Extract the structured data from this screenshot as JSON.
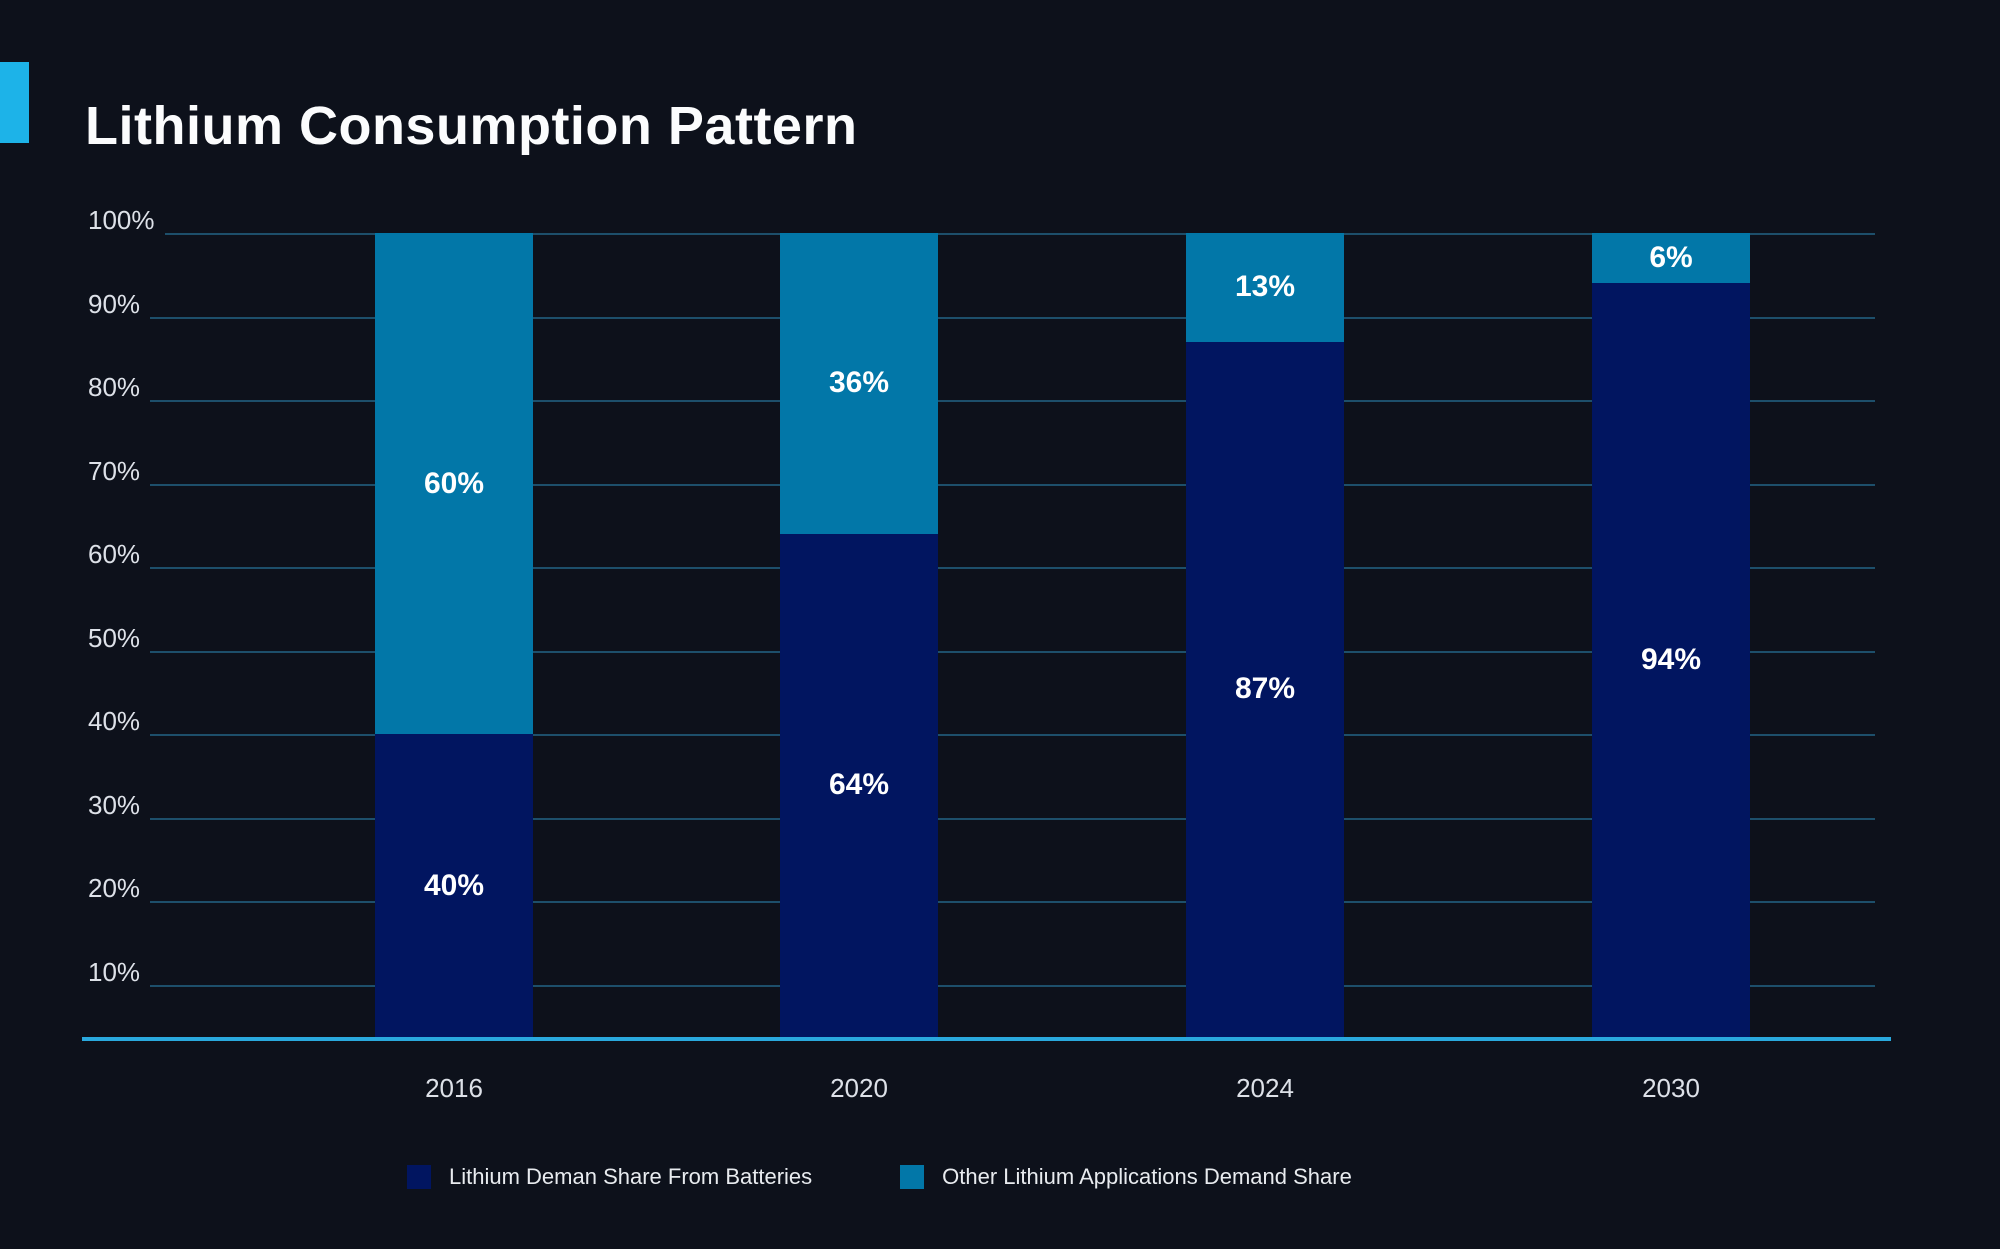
{
  "title": "Lithium Consumption Pattern",
  "colors": {
    "background": "#0d111b",
    "accent": "#1db3e8",
    "axis_line": "#2aa9de",
    "gridline": "#1d4f6b",
    "batteries_series": "#011560",
    "other_series": "#0277a8",
    "label_text": "#dde1e8",
    "segment_label_text": "#ffffff"
  },
  "chart_data": {
    "type": "bar",
    "stacked": true,
    "title": "Lithium Consumption Pattern",
    "categories": [
      "2016",
      "2020",
      "2024",
      "2030"
    ],
    "series": [
      {
        "name": "Lithium Deman Share From Batteries",
        "color": "#011560",
        "values": [
          40,
          64,
          87,
          94
        ],
        "labels": [
          "40%",
          "64%",
          "87%",
          "94%"
        ]
      },
      {
        "name": "Other Lithium Applications Demand Share",
        "color": "#0277a8",
        "values": [
          60,
          36,
          13,
          6
        ],
        "labels": [
          "60%",
          "36%",
          "13%",
          "6%"
        ]
      }
    ],
    "y_axis": {
      "range": [
        0,
        100
      ],
      "ticks": [
        10,
        20,
        30,
        40,
        50,
        60,
        70,
        80,
        90,
        100
      ],
      "tick_labels": [
        "10%",
        "20%",
        "30%",
        "40%",
        "50%",
        "60%",
        "70%",
        "80%",
        "90%",
        "100%"
      ]
    },
    "grid": true,
    "legend_position": "bottom"
  }
}
